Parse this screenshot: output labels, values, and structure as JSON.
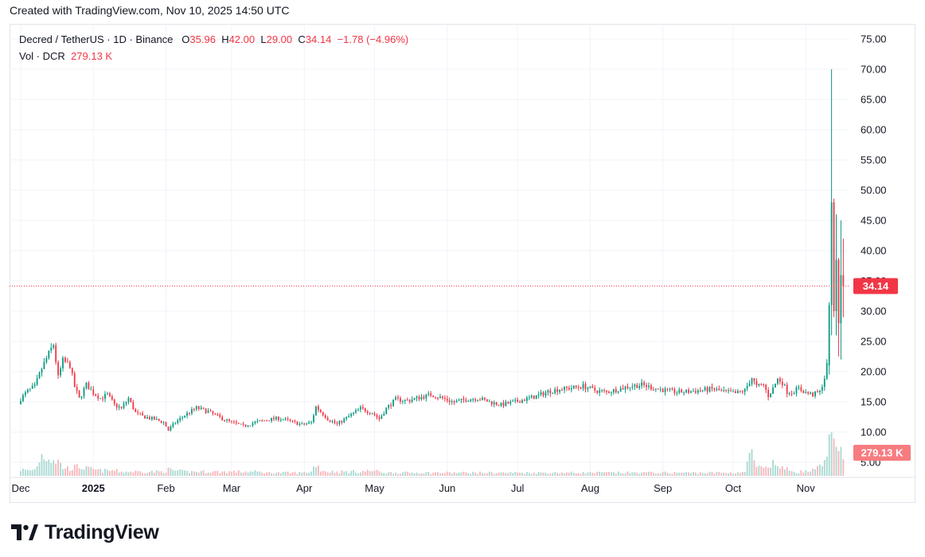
{
  "header": {
    "created_text": "Created with TradingView.com, Nov 10, 2025 14:50 UTC"
  },
  "legend": {
    "symbol": "Decred / TetherUS · 1D · Binance",
    "o_label": "O",
    "o_value": "35.96",
    "h_label": "H",
    "h_value": "42.00",
    "l_label": "L",
    "l_value": "29.00",
    "c_label": "C",
    "c_value": "34.14",
    "change": "−1.78 (−4.96%)",
    "vol_label": "Vol · DCR",
    "vol_value": "279.13 K"
  },
  "price_badge": "34.14",
  "volume_badge": "279.13 K",
  "brand": {
    "name": "TradingView"
  },
  "colors": {
    "up": "#089981",
    "down": "#f23645",
    "up_vol": "#a8d9d1",
    "down_vol": "#f9b5b9",
    "grid": "#f0f3fa",
    "last_price": "#f23645"
  },
  "chart_data": {
    "type": "candlestick",
    "title": "Decred / TetherUS · 1D · Binance",
    "y_ticks": [
      "5.00",
      "10.00",
      "15.00",
      "20.00",
      "25.00",
      "30.00",
      "35.00",
      "40.00",
      "45.00",
      "50.00",
      "55.00",
      "60.00",
      "65.00",
      "70.00",
      "75.00"
    ],
    "ylim": [
      2.5,
      77.5
    ],
    "x_ticks": [
      {
        "label": "Dec",
        "day": 0
      },
      {
        "label": "2025",
        "day": 31,
        "bold": true
      },
      {
        "label": "Feb",
        "day": 62
      },
      {
        "label": "Mar",
        "day": 90
      },
      {
        "label": "Apr",
        "day": 121
      },
      {
        "label": "May",
        "day": 151
      },
      {
        "label": "Jun",
        "day": 182
      },
      {
        "label": "Jul",
        "day": 212
      },
      {
        "label": "Aug",
        "day": 243
      },
      {
        "label": "Sep",
        "day": 274
      },
      {
        "label": "Oct",
        "day": 304
      },
      {
        "label": "Nov",
        "day": 335
      }
    ],
    "last_price": 34.14,
    "anchors": [
      [
        0,
        15.5,
        6
      ],
      [
        3,
        16.8,
        5
      ],
      [
        6,
        17.5,
        6
      ],
      [
        9,
        20.5,
        20
      ],
      [
        12,
        23.0,
        18
      ],
      [
        14,
        24.5,
        16
      ],
      [
        16,
        19.0,
        14
      ],
      [
        18,
        21.8,
        8
      ],
      [
        21,
        21.0,
        7
      ],
      [
        23,
        17.5,
        8
      ],
      [
        25,
        15.5,
        9
      ],
      [
        28,
        17.8,
        7
      ],
      [
        31,
        16.5,
        6
      ],
      [
        34,
        15.6,
        5
      ],
      [
        37,
        16.2,
        5
      ],
      [
        40,
        14.5,
        5
      ],
      [
        43,
        13.9,
        4
      ],
      [
        46,
        15.6,
        4
      ],
      [
        49,
        13.2,
        4
      ],
      [
        52,
        12.6,
        4
      ],
      [
        55,
        12.3,
        4
      ],
      [
        58,
        12.0,
        4
      ],
      [
        61,
        11.6,
        4
      ],
      [
        63,
        10.3,
        6
      ],
      [
        66,
        11.6,
        5
      ],
      [
        70,
        12.8,
        4
      ],
      [
        75,
        14.0,
        4
      ],
      [
        80,
        13.4,
        4
      ],
      [
        85,
        12.4,
        4
      ],
      [
        90,
        11.6,
        4
      ],
      [
        95,
        11.0,
        4
      ],
      [
        100,
        11.6,
        4
      ],
      [
        105,
        12.0,
        3
      ],
      [
        110,
        12.3,
        3
      ],
      [
        115,
        11.8,
        3
      ],
      [
        120,
        11.2,
        3
      ],
      [
        124,
        11.6,
        4
      ],
      [
        126,
        14.2,
        12
      ],
      [
        128,
        13.4,
        6
      ],
      [
        131,
        12.2,
        4
      ],
      [
        135,
        11.3,
        4
      ],
      [
        140,
        12.6,
        4
      ],
      [
        145,
        13.9,
        4
      ],
      [
        150,
        13.2,
        5
      ],
      [
        153,
        12.2,
        4
      ],
      [
        156,
        13.9,
        3
      ],
      [
        160,
        15.4,
        3
      ],
      [
        165,
        15.2,
        3
      ],
      [
        170,
        15.7,
        3
      ],
      [
        175,
        16.2,
        3
      ],
      [
        180,
        15.6,
        3
      ],
      [
        185,
        14.9,
        3
      ],
      [
        190,
        15.4,
        3
      ],
      [
        195,
        15.6,
        3
      ],
      [
        200,
        15.0,
        3
      ],
      [
        205,
        14.5,
        3
      ],
      [
        210,
        14.9,
        3
      ],
      [
        215,
        15.4,
        3
      ],
      [
        220,
        15.9,
        3
      ],
      [
        225,
        16.7,
        3
      ],
      [
        230,
        17.1,
        3
      ],
      [
        235,
        17.3,
        3
      ],
      [
        240,
        17.6,
        3
      ],
      [
        245,
        16.9,
        3
      ],
      [
        250,
        16.6,
        3
      ],
      [
        255,
        17.1,
        3
      ],
      [
        260,
        17.6,
        3
      ],
      [
        265,
        17.8,
        3
      ],
      [
        270,
        17.3,
        3
      ],
      [
        275,
        16.9,
        3
      ],
      [
        280,
        16.6,
        3
      ],
      [
        285,
        16.7,
        3
      ],
      [
        290,
        16.9,
        3
      ],
      [
        295,
        17.1,
        3
      ],
      [
        300,
        16.7,
        3
      ],
      [
        305,
        16.4,
        3
      ],
      [
        309,
        16.9,
        4
      ],
      [
        312,
        19.0,
        25
      ],
      [
        314,
        17.5,
        8
      ],
      [
        317,
        17.8,
        7
      ],
      [
        319,
        16.0,
        6
      ],
      [
        321,
        17.2,
        12
      ],
      [
        323,
        18.8,
        10
      ],
      [
        325,
        18.2,
        8
      ],
      [
        327,
        16.7,
        6
      ],
      [
        329,
        16.6,
        5
      ],
      [
        332,
        17.2,
        4
      ],
      [
        335,
        16.5,
        4
      ],
      [
        338,
        16.2,
        5
      ],
      [
        341,
        16.6,
        8
      ],
      [
        343,
        19.0,
        12
      ],
      [
        344,
        21.0,
        20
      ]
    ],
    "final_candles": [
      {
        "day": 345,
        "open": 21.0,
        "high": 31.5,
        "low": 19.5,
        "close": 31.0,
        "volume": 40
      },
      {
        "day": 346,
        "open": 31.0,
        "high": 70.0,
        "low": 26.0,
        "close": 48.0,
        "volume": 42
      },
      {
        "day": 347,
        "open": 48.0,
        "high": 48.6,
        "low": 29.0,
        "close": 30.0,
        "volume": 36
      },
      {
        "day": 348,
        "open": 30.0,
        "high": 46.0,
        "low": 26.0,
        "close": 38.5,
        "volume": 28
      },
      {
        "day": 349,
        "open": 38.5,
        "high": 38.8,
        "low": 22.5,
        "close": 28.0,
        "volume": 24
      },
      {
        "day": 350,
        "open": 28.0,
        "high": 45.0,
        "low": 22.0,
        "close": 35.96,
        "volume": 28
      },
      {
        "day": 351,
        "open": 35.96,
        "high": 42.0,
        "low": 29.0,
        "close": 34.14,
        "volume": 16
      }
    ]
  }
}
